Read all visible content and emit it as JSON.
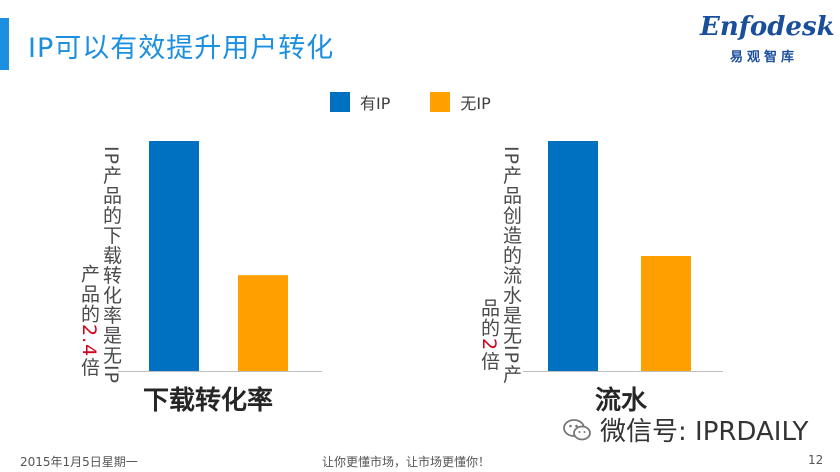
{
  "header": {
    "title": "IP可以有效提升用户转化",
    "logo_text": "Enfodesk",
    "logo_subtitle": "易观智库"
  },
  "legend": [
    {
      "label": "有IP",
      "color": "#0070c0"
    },
    {
      "label": "无IP",
      "color": "#ffa000"
    }
  ],
  "notes": {
    "left_line1": "IP产品的下载转化率是无IP",
    "left_line2_before": "产品的",
    "left_line2_highlight": "2.4",
    "left_line2_after": "倍",
    "right_line1": "IP产品创造的流水是无IP产",
    "right_line2_before": "品的",
    "right_line2_highlight": "2",
    "right_line2_after": "倍"
  },
  "chart_data": [
    {
      "type": "bar",
      "title": "下载转化率",
      "categories": [
        "下载转化率"
      ],
      "series": [
        {
          "name": "有IP",
          "values": [
            2.4
          ]
        },
        {
          "name": "无IP",
          "values": [
            1
          ]
        }
      ],
      "ylim": [
        0,
        2.4
      ],
      "grid": false,
      "legend": "top"
    },
    {
      "type": "bar",
      "title": "流水",
      "categories": [
        "流水"
      ],
      "series": [
        {
          "name": "有IP",
          "values": [
            2
          ]
        },
        {
          "name": "无IP",
          "values": [
            1
          ]
        }
      ],
      "ylim": [
        0,
        2
      ],
      "grid": false,
      "legend": "top"
    }
  ],
  "watermark": {
    "text": "微信号: IPRDAILY",
    "icon": "wechat-icon"
  },
  "footer": {
    "date": "2015年1月5日星期一",
    "slogan": "让你更懂市场，让市场更懂你！",
    "page": "12"
  }
}
